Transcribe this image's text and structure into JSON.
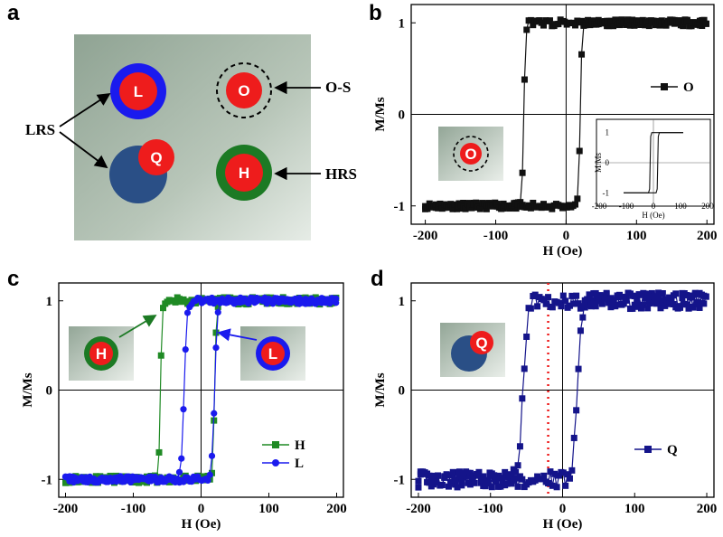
{
  "panel_labels": [
    "a",
    "b",
    "c",
    "d"
  ],
  "panel_a": {
    "dots": {
      "L": "L",
      "O": "O",
      "Q": "Q",
      "H": "H"
    },
    "annotations": {
      "lrs": "LRS",
      "os": "O-S",
      "hrs": "HRS"
    }
  },
  "colors": {
    "red": "#ee1c1c",
    "blue": "#1a1aee",
    "green": "#1c7a24",
    "navy": "#2a4f86",
    "darknavy": "#14148a",
    "black": "#111111",
    "greendata": "#1f8a24"
  },
  "chart_data": [
    {
      "id": "b",
      "type": "line",
      "title": "",
      "xlabel": "H (Oe)",
      "ylabel": "M/Ms",
      "xlim": [
        -220,
        210
      ],
      "ylim": [
        -1.2,
        1.2
      ],
      "xticks": [
        -200,
        -100,
        0,
        100,
        200
      ],
      "yticks": [
        -1,
        0,
        1
      ],
      "legend": "right",
      "inset_dot": "O",
      "series": [
        {
          "name": "O",
          "Hc_left": -60,
          "Hc_right": 20,
          "color": "#111111"
        }
      ],
      "inset": {
        "xlabel": "H (Oe)",
        "ylabel": "M/Ms",
        "xticks": [
          -200,
          -100,
          0,
          100,
          200
        ],
        "yticks": [
          -1,
          0,
          1
        ]
      }
    },
    {
      "id": "c",
      "type": "line",
      "title": "",
      "xlabel": "H (Oe)",
      "ylabel": "M/Ms",
      "xlim": [
        -210,
        210
      ],
      "ylim": [
        -1.2,
        1.2
      ],
      "xticks": [
        -200,
        -100,
        0,
        100,
        200
      ],
      "yticks": [
        -1,
        0,
        1
      ],
      "legend": "bottom-right",
      "inset_dots": [
        "H",
        "L"
      ],
      "series": [
        {
          "name": "H",
          "Hc_left": -60,
          "Hc_right": 20,
          "color": "#1f8a24"
        },
        {
          "name": "L",
          "Hc_left": -25,
          "Hc_right": 20,
          "color": "#1a1aee"
        }
      ]
    },
    {
      "id": "d",
      "type": "line",
      "title": "",
      "xlabel": "H (Oe)",
      "ylabel": "M/Ms",
      "xlim": [
        -210,
        210
      ],
      "ylim": [
        -1.2,
        1.2
      ],
      "xticks": [
        -200,
        -100,
        0,
        100,
        200
      ],
      "yticks": [
        -1,
        0,
        1
      ],
      "legend": "bottom-right",
      "inset_dot": "Q",
      "vline": -20,
      "series": [
        {
          "name": "Q",
          "Hc_left": -55,
          "Hc_right": 20,
          "color": "#14148a"
        }
      ]
    }
  ]
}
